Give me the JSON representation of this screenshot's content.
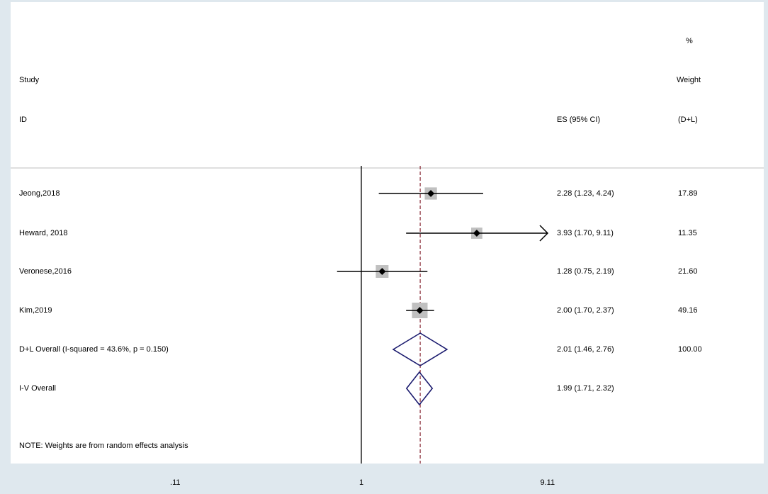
{
  "chart_data": {
    "type": "forest",
    "headers": {
      "study_line1": "Study",
      "study_line2": "ID",
      "es": "ES (95% CI)",
      "weight_line1": "%",
      "weight_line2": "Weight",
      "weight_line3": "(D+L)"
    },
    "x_scale": "log",
    "x_ticks": [
      {
        "value": 0.1098,
        "label": ".11"
      },
      {
        "value": 1,
        "label": "1"
      },
      {
        "value": 9.11,
        "label": "9.11"
      }
    ],
    "null_line": 1,
    "overall_line": 2.01,
    "studies": [
      {
        "id": "Jeong,2018",
        "es": 2.28,
        "lo": 1.23,
        "hi": 4.24,
        "es_text": "2.28 (1.23, 4.24)",
        "weight_text": "17.89",
        "weight": 17.89,
        "arrow_right": false
      },
      {
        "id": "Heward,  2018",
        "es": 3.93,
        "lo": 1.7,
        "hi": 9.11,
        "es_text": "3.93 (1.70, 9.11)",
        "weight_text": "11.35",
        "weight": 11.35,
        "arrow_right": true
      },
      {
        "id": "Veronese,2016",
        "es": 1.28,
        "lo": 0.75,
        "hi": 2.19,
        "es_text": "1.28 (0.75, 2.19)",
        "weight_text": "21.60",
        "weight": 21.6,
        "arrow_right": false
      },
      {
        "id": "Kim,2019",
        "es": 2.0,
        "lo": 1.7,
        "hi": 2.37,
        "es_text": "2.00 (1.70, 2.37)",
        "weight_text": "49.16",
        "weight": 49.16,
        "arrow_right": false
      }
    ],
    "overall": [
      {
        "id": "D+L Overall  (I-squared = 43.6%, p = 0.150)",
        "es": 2.01,
        "lo": 1.46,
        "hi": 2.76,
        "es_text": "2.01 (1.46, 2.76)",
        "weight_text": "100.00"
      },
      {
        "id": "I-V Overall",
        "es": 1.99,
        "lo": 1.71,
        "hi": 2.32,
        "es_text": "1.99 (1.71, 2.32)",
        "weight_text": ""
      }
    ],
    "note": "NOTE: Weights are from random effects analysis",
    "colors": {
      "background": "#dfe8ee",
      "plot": "#ffffff",
      "diamond": "#1a1a6e",
      "overall_line": "#8b2e3a",
      "box": "#c0c0c0",
      "line": "#000000"
    }
  }
}
